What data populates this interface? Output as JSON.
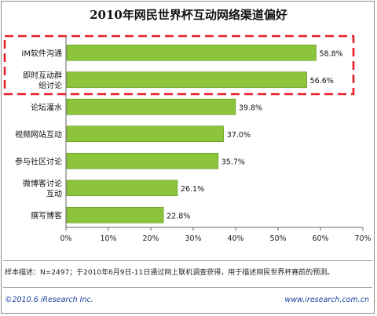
{
  "title": "2010年网民世界杯互动网络渠道偏好",
  "note": "样本描述：N=2497；于2010年6月9日-11日通过网上联机调查获得，用于描述网民世界杯赛前的预测。",
  "footer": {
    "copyright": "©2010.6 iResearch Inc.",
    "website": "www.iresearch.com.cn"
  },
  "colors": {
    "bar": "#8cc43c",
    "bar_edge": "#5e8f1c",
    "highlight": "#e8202a",
    "axis": "#666666"
  },
  "chart_data": {
    "type": "bar",
    "orientation": "horizontal",
    "title": "2010年网民世界杯互动网络渠道偏好",
    "categories": [
      "IM软件沟通",
      "即时互动群组讨论",
      "论坛灌水",
      "视频网站互动",
      "参与社区讨论",
      "微博客讨论互动",
      "撰写博客"
    ],
    "values": [
      58.8,
      56.6,
      39.8,
      37.0,
      35.7,
      26.1,
      22.8
    ],
    "value_labels": [
      "58.8%",
      "56.6%",
      "39.8%",
      "37.0%",
      "35.7%",
      "26.1%",
      "22.8%"
    ],
    "xlim": [
      0,
      70
    ],
    "xticks": [
      "0%",
      "10%",
      "20%",
      "30%",
      "40%",
      "50%",
      "60%",
      "70%"
    ],
    "highlighted_categories": [
      "IM软件沟通",
      "即时互动群组讨论"
    ],
    "legend": "none",
    "grid": false
  }
}
